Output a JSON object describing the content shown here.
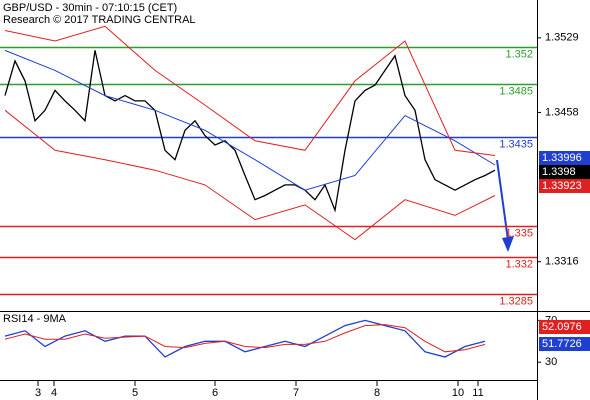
{
  "chart_data": [
    {
      "type": "line",
      "title": "GBP/USD - 30min - 07:10:15 (CET)",
      "subtitle": "Research © 2017 TRADING CENTRAL",
      "xlim": [
        -0.5,
        53.2
      ],
      "ylim": [
        1.327,
        1.3565
      ],
      "xticks": [
        {
          "value": 3.3,
          "label": "3"
        },
        {
          "value": 4.9,
          "label": "4"
        },
        {
          "value": 13,
          "label": "5"
        },
        {
          "value": 21,
          "label": "6"
        },
        {
          "value": 29.1,
          "label": "7"
        },
        {
          "value": 37.2,
          "label": "8"
        },
        {
          "value": 45.3,
          "label": "10"
        },
        {
          "value": 47.3,
          "label": "11"
        }
      ],
      "yticks": [
        1.3529,
        1.3458,
        1.3316
      ],
      "grid": false,
      "series": [
        {
          "color": "#000000",
          "x": [
            0,
            1,
            2,
            3,
            4,
            5,
            6,
            7,
            8,
            9,
            10,
            11,
            12,
            13,
            14,
            15,
            16,
            17,
            18,
            19,
            20,
            21,
            22,
            23,
            24,
            25,
            26,
            27,
            28,
            29,
            30,
            31,
            32,
            33,
            34,
            35,
            36,
            37,
            38,
            39,
            40,
            41,
            42,
            43,
            44,
            45,
            46,
            47,
            48,
            49
          ],
          "values": [
            1.3474,
            1.3507,
            1.3488,
            1.345,
            1.346,
            1.3479,
            1.3469,
            1.346,
            1.345,
            1.3517,
            1.3474,
            1.3469,
            1.3474,
            1.3469,
            1.3469,
            1.346,
            1.3422,
            1.3413,
            1.3441,
            1.345,
            1.3436,
            1.3427,
            1.3431,
            1.3422,
            1.3398,
            1.3375,
            1.3379,
            1.3384,
            1.3389,
            1.3389,
            1.3384,
            1.3375,
            1.3389,
            1.3365,
            1.3422,
            1.3469,
            1.3479,
            1.3484,
            1.3498,
            1.3512,
            1.3474,
            1.346,
            1.3413,
            1.3394,
            1.3389,
            1.3384,
            1.3389,
            1.3394,
            1.3398,
            1.3403
          ]
        },
        {
          "color": "#1f3fd0",
          "x": [
            0,
            5,
            10,
            15,
            20,
            25,
            30,
            35,
            40,
            45,
            49
          ],
          "values": [
            1.3517,
            1.3498,
            1.3474,
            1.346,
            1.3441,
            1.3413,
            1.3384,
            1.3398,
            1.3455,
            1.3431,
            1.3408
          ]
        },
        {
          "color": "#e02020",
          "x": [
            0,
            5,
            10,
            15,
            20,
            25,
            30,
            35,
            40,
            45,
            49
          ],
          "values": [
            1.3536,
            1.3526,
            1.354,
            1.3498,
            1.3465,
            1.3431,
            1.3422,
            1.3488,
            1.3526,
            1.3422,
            1.3417
          ]
        },
        {
          "color": "#e02020",
          "x": [
            0,
            5,
            10,
            15,
            20,
            25,
            30,
            35,
            40,
            45,
            49
          ],
          "values": [
            1.346,
            1.3422,
            1.3413,
            1.3403,
            1.3389,
            1.3356,
            1.337,
            1.3337,
            1.3375,
            1.336,
            1.3379
          ]
        }
      ],
      "levels": [
        {
          "value": 1.352,
          "color": "#2e9e2e"
        },
        {
          "value": 1.3485,
          "color": "#2e9e2e"
        },
        {
          "value": 1.3435,
          "color": "#1f3fd0"
        },
        {
          "value": 1.335,
          "color": "#e02020"
        },
        {
          "value": 1.332,
          "color": "#e02020"
        },
        {
          "value": 1.3285,
          "color": "#e02020"
        }
      ],
      "last_values": [
        {
          "value": 1.33996,
          "color": "#1f3fd0"
        },
        {
          "value": 1.3398,
          "color": "#000000"
        },
        {
          "value": 1.33923,
          "color": "#e02020"
        }
      ]
    },
    {
      "type": "line",
      "title": "RSI14 - 9MA",
      "xlim": [
        -0.5,
        53.2
      ],
      "ylim": [
        13,
        78
      ],
      "yticks": [
        70,
        30
      ],
      "series": [
        {
          "color": "#1f3fd0",
          "x": [
            0,
            2,
            4,
            6,
            8,
            10,
            12,
            14,
            16,
            18,
            20,
            22,
            24,
            26,
            28,
            30,
            32,
            34,
            36,
            38,
            40,
            42,
            44,
            46,
            48
          ],
          "values": [
            55,
            60,
            45,
            55,
            60,
            50,
            55,
            55,
            35,
            45,
            50,
            50,
            40,
            45,
            50,
            45,
            55,
            65,
            70,
            65,
            60,
            40,
            35,
            45,
            50
          ]
        },
        {
          "color": "#e02020",
          "x": [
            0,
            2,
            4,
            6,
            8,
            10,
            12,
            14,
            16,
            18,
            20,
            22,
            24,
            26,
            28,
            30,
            32,
            34,
            36,
            38,
            40,
            42,
            44,
            46,
            48
          ],
          "values": [
            52,
            57,
            52,
            52,
            57,
            53,
            54,
            55,
            45,
            44,
            48,
            50,
            45,
            44,
            47,
            47,
            50,
            58,
            65,
            66,
            63,
            50,
            40,
            42,
            47
          ]
        }
      ],
      "last_values": [
        {
          "value": 52.0976,
          "color": "#e02020"
        },
        {
          "value": 51.7726,
          "color": "#1f3fd0"
        }
      ]
    }
  ]
}
